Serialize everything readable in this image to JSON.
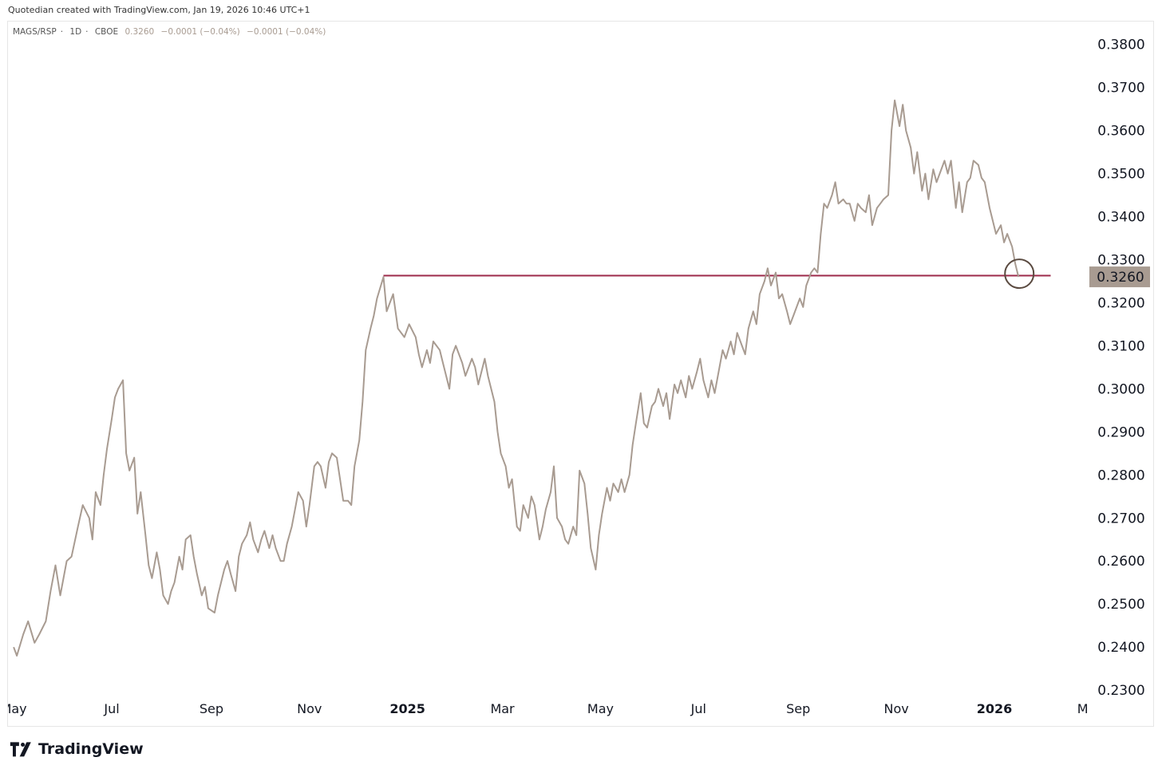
{
  "header": {
    "text": "Quotedian created with TradingView.com, Jan 19, 2026 10:46 UTC+1"
  },
  "legend": {
    "symbol": "MAGS/RSP",
    "interval": "1D",
    "exchange": "CBOE",
    "value": "0.3260",
    "change": "−0.0001 (−0.04%)",
    "change2": "−0.0001 (−0.04%)"
  },
  "brand": {
    "name": "TradingView"
  },
  "colors": {
    "series": "#a89b91",
    "level_line": "#9c2a4a",
    "label_bg": "#a89b91",
    "circle": "#5a4a40"
  },
  "chart_data": {
    "type": "line",
    "x_ticks": [
      "May",
      "Jul",
      "Sep",
      "Nov",
      "2025",
      "Mar",
      "May",
      "Jul",
      "Sep",
      "Nov",
      "2026",
      "Mar"
    ],
    "bold_x_ticks": [
      "2025",
      "2026"
    ],
    "y_ticks": [
      "0.3800",
      "0.3700",
      "0.3600",
      "0.3500",
      "0.3400",
      "0.3300",
      "0.3200",
      "0.3100",
      "0.3000",
      "0.2900",
      "0.2800",
      "0.2700",
      "0.2600",
      "0.2500",
      "0.2400",
      "0.2300"
    ],
    "ylim": [
      0.2215,
      0.3855
    ],
    "last_value_label": "0.3260",
    "horizontal_line": {
      "value": 0.3263,
      "from": "2024-12-17",
      "to": "2026-02-05"
    },
    "highlight_circle": {
      "x": "2026-01-16",
      "y": 0.326
    },
    "grid": false,
    "series": [
      {
        "points": [
          [
            "2024-05-01",
            0.24
          ],
          [
            "2024-05-03",
            0.238
          ],
          [
            "2024-05-07",
            0.243
          ],
          [
            "2024-05-10",
            0.246
          ],
          [
            "2024-05-14",
            0.241
          ],
          [
            "2024-05-17",
            0.243
          ],
          [
            "2024-05-21",
            0.246
          ],
          [
            "2024-05-24",
            0.253
          ],
          [
            "2024-05-27",
            0.259
          ],
          [
            "2024-05-30",
            0.252
          ],
          [
            "2024-06-03",
            0.26
          ],
          [
            "2024-06-06",
            0.261
          ],
          [
            "2024-06-10",
            0.268
          ],
          [
            "2024-06-13",
            0.273
          ],
          [
            "2024-06-17",
            0.27
          ],
          [
            "2024-06-19",
            0.265
          ],
          [
            "2024-06-21",
            0.276
          ],
          [
            "2024-06-24",
            0.273
          ],
          [
            "2024-06-26",
            0.28
          ],
          [
            "2024-06-28",
            0.286
          ],
          [
            "2024-07-01",
            0.293
          ],
          [
            "2024-07-03",
            0.298
          ],
          [
            "2024-07-05",
            0.3
          ],
          [
            "2024-07-08",
            0.302
          ],
          [
            "2024-07-10",
            0.285
          ],
          [
            "2024-07-12",
            0.281
          ],
          [
            "2024-07-15",
            0.284
          ],
          [
            "2024-07-17",
            0.271
          ],
          [
            "2024-07-19",
            0.276
          ],
          [
            "2024-07-22",
            0.266
          ],
          [
            "2024-07-24",
            0.259
          ],
          [
            "2024-07-26",
            0.256
          ],
          [
            "2024-07-29",
            0.262
          ],
          [
            "2024-07-31",
            0.258
          ],
          [
            "2024-08-02",
            0.252
          ],
          [
            "2024-08-05",
            0.25
          ],
          [
            "2024-08-07",
            0.253
          ],
          [
            "2024-08-09",
            0.255
          ],
          [
            "2024-08-12",
            0.261
          ],
          [
            "2024-08-14",
            0.258
          ],
          [
            "2024-08-16",
            0.265
          ],
          [
            "2024-08-19",
            0.266
          ],
          [
            "2024-08-21",
            0.261
          ],
          [
            "2024-08-23",
            0.257
          ],
          [
            "2024-08-26",
            0.252
          ],
          [
            "2024-08-28",
            0.254
          ],
          [
            "2024-08-30",
            0.249
          ],
          [
            "2024-09-03",
            0.248
          ],
          [
            "2024-09-05",
            0.252
          ],
          [
            "2024-09-09",
            0.258
          ],
          [
            "2024-09-11",
            0.26
          ],
          [
            "2024-09-13",
            0.257
          ],
          [
            "2024-09-16",
            0.253
          ],
          [
            "2024-09-18",
            0.261
          ],
          [
            "2024-09-20",
            0.264
          ],
          [
            "2024-09-23",
            0.266
          ],
          [
            "2024-09-25",
            0.269
          ],
          [
            "2024-09-27",
            0.265
          ],
          [
            "2024-09-30",
            0.262
          ],
          [
            "2024-10-02",
            0.265
          ],
          [
            "2024-10-04",
            0.267
          ],
          [
            "2024-10-07",
            0.263
          ],
          [
            "2024-10-09",
            0.266
          ],
          [
            "2024-10-11",
            0.263
          ],
          [
            "2024-10-14",
            0.26
          ],
          [
            "2024-10-16",
            0.26
          ],
          [
            "2024-10-18",
            0.264
          ],
          [
            "2024-10-21",
            0.268
          ],
          [
            "2024-10-23",
            0.272
          ],
          [
            "2024-10-25",
            0.276
          ],
          [
            "2024-10-28",
            0.274
          ],
          [
            "2024-10-30",
            0.268
          ],
          [
            "2024-11-01",
            0.273
          ],
          [
            "2024-11-04",
            0.282
          ],
          [
            "2024-11-06",
            0.283
          ],
          [
            "2024-11-08",
            0.282
          ],
          [
            "2024-11-11",
            0.277
          ],
          [
            "2024-11-13",
            0.283
          ],
          [
            "2024-11-15",
            0.285
          ],
          [
            "2024-11-18",
            0.284
          ],
          [
            "2024-11-20",
            0.279
          ],
          [
            "2024-11-22",
            0.274
          ],
          [
            "2024-11-25",
            0.274
          ],
          [
            "2024-11-27",
            0.273
          ],
          [
            "2024-11-29",
            0.282
          ],
          [
            "2024-12-02",
            0.288
          ],
          [
            "2024-12-04",
            0.297
          ],
          [
            "2024-12-06",
            0.309
          ],
          [
            "2024-12-09",
            0.314
          ],
          [
            "2024-12-11",
            0.317
          ],
          [
            "2024-12-13",
            0.321
          ],
          [
            "2024-12-17",
            0.326
          ],
          [
            "2024-12-19",
            0.318
          ],
          [
            "2024-12-23",
            0.322
          ],
          [
            "2024-12-26",
            0.314
          ],
          [
            "2024-12-30",
            0.312
          ],
          [
            "2025-01-02",
            0.315
          ],
          [
            "2025-01-06",
            0.312
          ],
          [
            "2025-01-08",
            0.308
          ],
          [
            "2025-01-10",
            0.305
          ],
          [
            "2025-01-13",
            0.309
          ],
          [
            "2025-01-15",
            0.306
          ],
          [
            "2025-01-17",
            0.311
          ],
          [
            "2025-01-21",
            0.309
          ],
          [
            "2025-01-23",
            0.306
          ],
          [
            "2025-01-27",
            0.3
          ],
          [
            "2025-01-29",
            0.308
          ],
          [
            "2025-01-31",
            0.31
          ],
          [
            "2025-02-04",
            0.306
          ],
          [
            "2025-02-06",
            0.303
          ],
          [
            "2025-02-10",
            0.307
          ],
          [
            "2025-02-12",
            0.305
          ],
          [
            "2025-02-14",
            0.301
          ],
          [
            "2025-02-18",
            0.307
          ],
          [
            "2025-02-20",
            0.303
          ],
          [
            "2025-02-24",
            0.297
          ],
          [
            "2025-02-26",
            0.29
          ],
          [
            "2025-02-28",
            0.285
          ],
          [
            "2025-03-03",
            0.282
          ],
          [
            "2025-03-05",
            0.277
          ],
          [
            "2025-03-07",
            0.279
          ],
          [
            "2025-03-10",
            0.268
          ],
          [
            "2025-03-12",
            0.267
          ],
          [
            "2025-03-14",
            0.273
          ],
          [
            "2025-03-17",
            0.27
          ],
          [
            "2025-03-19",
            0.275
          ],
          [
            "2025-03-21",
            0.273
          ],
          [
            "2025-03-24",
            0.265
          ],
          [
            "2025-03-26",
            0.268
          ],
          [
            "2025-03-28",
            0.272
          ],
          [
            "2025-03-31",
            0.276
          ],
          [
            "2025-04-02",
            0.282
          ],
          [
            "2025-04-04",
            0.27
          ],
          [
            "2025-04-07",
            0.268
          ],
          [
            "2025-04-09",
            0.265
          ],
          [
            "2025-04-11",
            0.264
          ],
          [
            "2025-04-14",
            0.268
          ],
          [
            "2025-04-16",
            0.266
          ],
          [
            "2025-04-18",
            0.281
          ],
          [
            "2025-04-21",
            0.278
          ],
          [
            "2025-04-23",
            0.271
          ],
          [
            "2025-04-25",
            0.263
          ],
          [
            "2025-04-28",
            0.258
          ],
          [
            "2025-04-30",
            0.266
          ],
          [
            "2025-05-02",
            0.271
          ],
          [
            "2025-05-05",
            0.277
          ],
          [
            "2025-05-07",
            0.274
          ],
          [
            "2025-05-09",
            0.278
          ],
          [
            "2025-05-12",
            0.276
          ],
          [
            "2025-05-14",
            0.279
          ],
          [
            "2025-05-16",
            0.276
          ],
          [
            "2025-05-19",
            0.28
          ],
          [
            "2025-05-21",
            0.287
          ],
          [
            "2025-05-23",
            0.292
          ],
          [
            "2025-05-26",
            0.299
          ],
          [
            "2025-05-28",
            0.292
          ],
          [
            "2025-05-30",
            0.291
          ],
          [
            "2025-06-02",
            0.296
          ],
          [
            "2025-06-04",
            0.297
          ],
          [
            "2025-06-06",
            0.3
          ],
          [
            "2025-06-09",
            0.296
          ],
          [
            "2025-06-11",
            0.299
          ],
          [
            "2025-06-13",
            0.293
          ],
          [
            "2025-06-16",
            0.301
          ],
          [
            "2025-06-18",
            0.299
          ],
          [
            "2025-06-20",
            0.302
          ],
          [
            "2025-06-23",
            0.298
          ],
          [
            "2025-06-25",
            0.303
          ],
          [
            "2025-06-27",
            0.3
          ],
          [
            "2025-06-30",
            0.304
          ],
          [
            "2025-07-02",
            0.307
          ],
          [
            "2025-07-04",
            0.302
          ],
          [
            "2025-07-07",
            0.298
          ],
          [
            "2025-07-09",
            0.302
          ],
          [
            "2025-07-11",
            0.299
          ],
          [
            "2025-07-14",
            0.305
          ],
          [
            "2025-07-16",
            0.309
          ],
          [
            "2025-07-18",
            0.307
          ],
          [
            "2025-07-21",
            0.311
          ],
          [
            "2025-07-23",
            0.308
          ],
          [
            "2025-07-25",
            0.313
          ],
          [
            "2025-07-28",
            0.31
          ],
          [
            "2025-07-30",
            0.308
          ],
          [
            "2025-08-01",
            0.314
          ],
          [
            "2025-08-04",
            0.318
          ],
          [
            "2025-08-06",
            0.315
          ],
          [
            "2025-08-08",
            0.322
          ],
          [
            "2025-08-11",
            0.325
          ],
          [
            "2025-08-13",
            0.328
          ],
          [
            "2025-08-15",
            0.324
          ],
          [
            "2025-08-18",
            0.327
          ],
          [
            "2025-08-20",
            0.321
          ],
          [
            "2025-08-22",
            0.322
          ],
          [
            "2025-08-25",
            0.318
          ],
          [
            "2025-08-27",
            0.315
          ],
          [
            "2025-08-29",
            0.317
          ],
          [
            "2025-09-02",
            0.321
          ],
          [
            "2025-09-04",
            0.319
          ],
          [
            "2025-09-06",
            0.324
          ],
          [
            "2025-09-09",
            0.327
          ],
          [
            "2025-09-11",
            0.328
          ],
          [
            "2025-09-13",
            0.327
          ],
          [
            "2025-09-15",
            0.336
          ],
          [
            "2025-09-17",
            0.343
          ],
          [
            "2025-09-19",
            0.342
          ],
          [
            "2025-09-22",
            0.345
          ],
          [
            "2025-09-24",
            0.348
          ],
          [
            "2025-09-26",
            0.343
          ],
          [
            "2025-09-29",
            0.344
          ],
          [
            "2025-10-01",
            0.343
          ],
          [
            "2025-10-03",
            0.343
          ],
          [
            "2025-10-06",
            0.339
          ],
          [
            "2025-10-08",
            0.343
          ],
          [
            "2025-10-10",
            0.342
          ],
          [
            "2025-10-13",
            0.341
          ],
          [
            "2025-10-15",
            0.345
          ],
          [
            "2025-10-17",
            0.338
          ],
          [
            "2025-10-20",
            0.342
          ],
          [
            "2025-10-22",
            0.343
          ],
          [
            "2025-10-24",
            0.344
          ],
          [
            "2025-10-27",
            0.345
          ],
          [
            "2025-10-29",
            0.36
          ],
          [
            "2025-10-31",
            0.367
          ],
          [
            "2025-11-03",
            0.361
          ],
          [
            "2025-11-05",
            0.366
          ],
          [
            "2025-11-07",
            0.36
          ],
          [
            "2025-11-10",
            0.356
          ],
          [
            "2025-11-12",
            0.35
          ],
          [
            "2025-11-14",
            0.355
          ],
          [
            "2025-11-17",
            0.346
          ],
          [
            "2025-11-19",
            0.35
          ],
          [
            "2025-11-21",
            0.344
          ],
          [
            "2025-11-24",
            0.351
          ],
          [
            "2025-11-26",
            0.348
          ],
          [
            "2025-11-28",
            0.35
          ],
          [
            "2025-12-01",
            0.353
          ],
          [
            "2025-12-03",
            0.35
          ],
          [
            "2025-12-05",
            0.353
          ],
          [
            "2025-12-08",
            0.342
          ],
          [
            "2025-12-10",
            0.348
          ],
          [
            "2025-12-12",
            0.341
          ],
          [
            "2025-12-15",
            0.348
          ],
          [
            "2025-12-17",
            0.349
          ],
          [
            "2025-12-19",
            0.353
          ],
          [
            "2025-12-22",
            0.352
          ],
          [
            "2025-12-24",
            0.349
          ],
          [
            "2025-12-26",
            0.348
          ],
          [
            "2025-12-29",
            0.342
          ],
          [
            "2025-12-31",
            0.339
          ],
          [
            "2026-01-02",
            0.336
          ],
          [
            "2026-01-05",
            0.338
          ],
          [
            "2026-01-07",
            0.334
          ],
          [
            "2026-01-09",
            0.336
          ],
          [
            "2026-01-12",
            0.333
          ],
          [
            "2026-01-14",
            0.329
          ],
          [
            "2026-01-16",
            0.326
          ]
        ]
      }
    ]
  }
}
